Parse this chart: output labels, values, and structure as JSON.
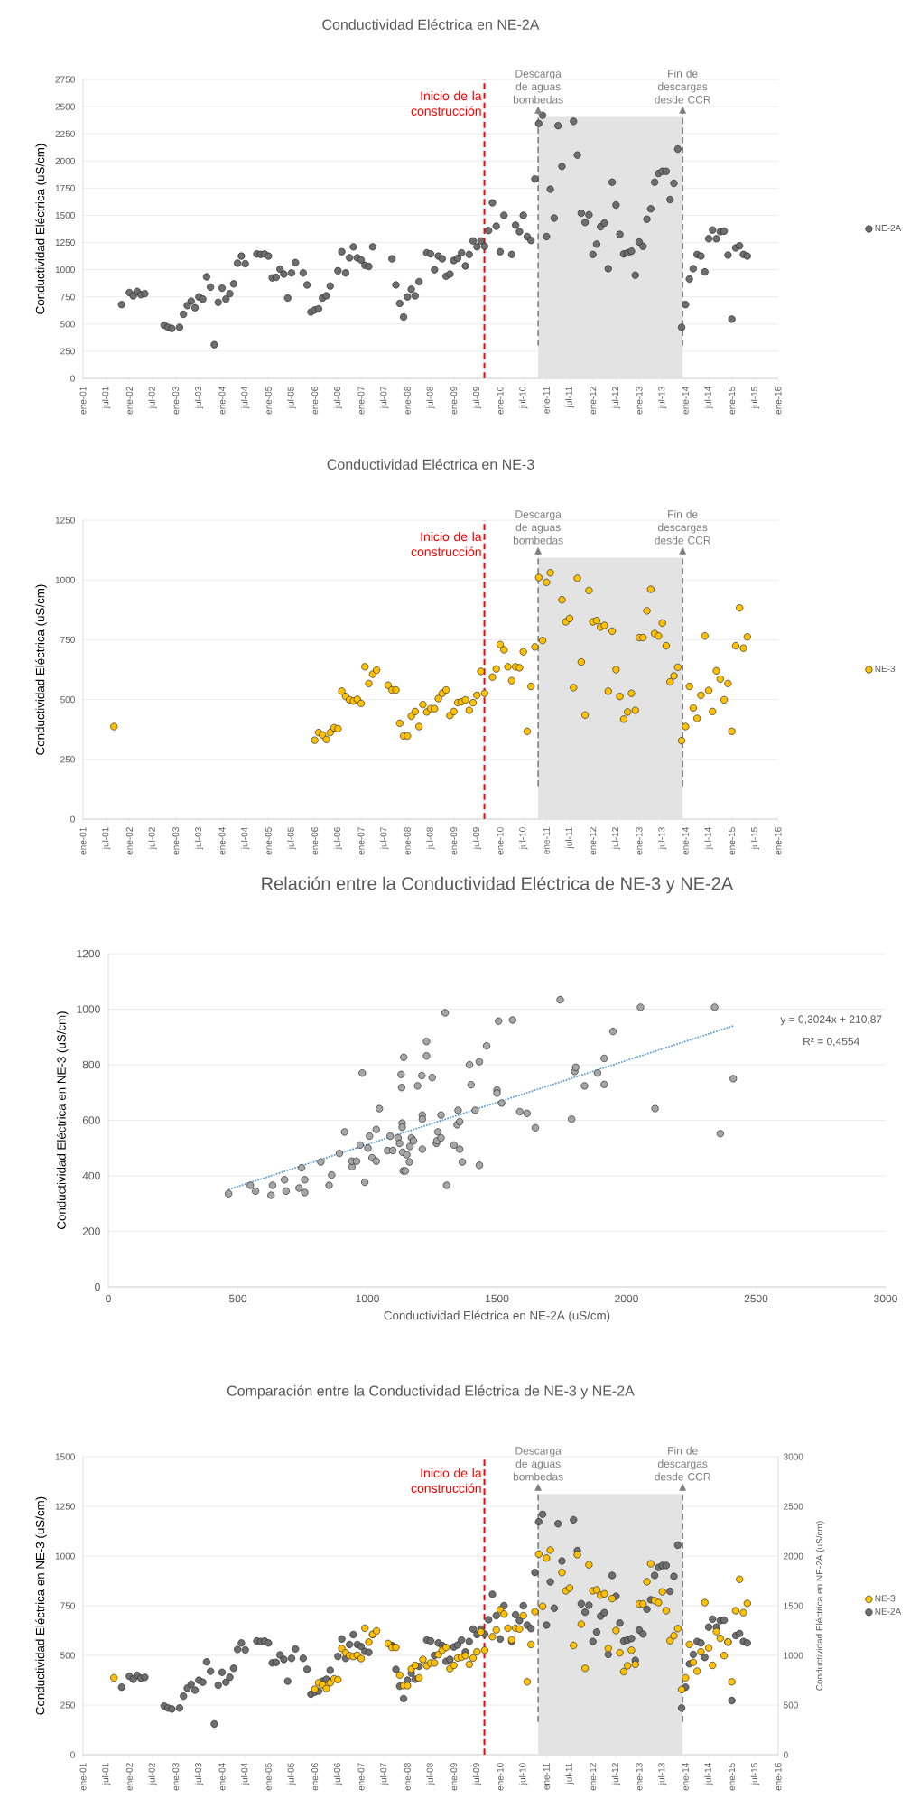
{
  "chart_data": [
    {
      "type": "scatter",
      "title": "Conductividad Eléctrica en NE-2A",
      "ylabel": "Conductividad Eléctrica (uS/cm)",
      "x": [
        "2001-11",
        "2002-01",
        "2002-02",
        "2002-03",
        "2002-04",
        "2002-05",
        "2002-10",
        "2002-11",
        "2002-12",
        "2003-02",
        "2003-03",
        "2003-04",
        "2003-05",
        "2003-06",
        "2003-07",
        "2003-08",
        "2003-09",
        "2003-10",
        "2003-11",
        "2003-12",
        "2004-01",
        "2004-02",
        "2004-03",
        "2004-04",
        "2004-05",
        "2004-06",
        "2004-07",
        "2004-10",
        "2004-11",
        "2004-12",
        "2005-01",
        "2005-02",
        "2005-03",
        "2005-04",
        "2005-05",
        "2005-06",
        "2005-07",
        "2005-08",
        "2005-10",
        "2005-11",
        "2005-12",
        "2006-01",
        "2006-02",
        "2006-03",
        "2006-04",
        "2006-05",
        "2006-07",
        "2006-08",
        "2006-09",
        "2006-10",
        "2006-11",
        "2006-12",
        "2007-01",
        "2007-02",
        "2007-03",
        "2007-04",
        "2007-09",
        "2007-10",
        "2007-11",
        "2007-12",
        "2008-01",
        "2008-02",
        "2008-03",
        "2008-04",
        "2008-06",
        "2008-07",
        "2008-08",
        "2008-09",
        "2008-10",
        "2008-11",
        "2008-12",
        "2009-01",
        "2009-02",
        "2009-03",
        "2009-04",
        "2009-05",
        "2009-06",
        "2009-07",
        "2009-08",
        "2009-09",
        "2009-10",
        "2009-11",
        "2009-12",
        "2010-01",
        "2010-02",
        "2010-04",
        "2010-05",
        "2010-06",
        "2010-07",
        "2010-08",
        "2010-09",
        "2010-10",
        "2010-11",
        "2010-12",
        "2011-01",
        "2011-02",
        "2011-03",
        "2011-04",
        "2011-05",
        "2011-08",
        "2011-09",
        "2011-10",
        "2011-11",
        "2011-12",
        "2012-01",
        "2012-02",
        "2012-03",
        "2012-04",
        "2012-05",
        "2012-06",
        "2012-07",
        "2012-08",
        "2012-09",
        "2012-10",
        "2012-11",
        "2012-12",
        "2013-01",
        "2013-02",
        "2013-03",
        "2013-04",
        "2013-05",
        "2013-06",
        "2013-07",
        "2013-08",
        "2013-09",
        "2013-10",
        "2013-11",
        "2013-12",
        "2014-01",
        "2014-02",
        "2014-03",
        "2014-04",
        "2014-05",
        "2014-06",
        "2014-07",
        "2014-08",
        "2014-09",
        "2014-10",
        "2014-11",
        "2014-12",
        "2015-01",
        "2015-02",
        "2015-03",
        "2015-04",
        "2015-05"
      ],
      "series": [
        {
          "name": "NE-2A",
          "color": "#6e6e6e",
          "values": [
            680,
            790,
            760,
            800,
            770,
            780,
            490,
            470,
            460,
            470,
            590,
            670,
            710,
            650,
            750,
            730,
            935,
            840,
            310,
            700,
            830,
            730,
            780,
            870,
            1060,
            1125,
            1055,
            1145,
            1140,
            1145,
            1125,
            925,
            930,
            1005,
            960,
            740,
            970,
            1065,
            970,
            860,
            610,
            630,
            640,
            740,
            760,
            850,
            990,
            1165,
            970,
            1110,
            1210,
            1110,
            1090,
            1040,
            1030,
            1210,
            1100,
            860,
            690,
            565,
            750,
            820,
            760,
            890,
            1155,
            1145,
            1000,
            1125,
            1100,
            940,
            960,
            1085,
            1105,
            1155,
            1035,
            1140,
            1265,
            1210,
            1265,
            1215,
            1360,
            1615,
            1400,
            1165,
            1500,
            1140,
            1410,
            1350,
            1500,
            1305,
            1270,
            1835,
            2345,
            2420,
            1305,
            1740,
            1475,
            2325,
            1950,
            2365,
            2055,
            1520,
            1435,
            1505,
            1140,
            1235,
            1395,
            1430,
            1010,
            1805,
            1595,
            1325,
            1145,
            1155,
            1170,
            950,
            1255,
            1215,
            1465,
            1560,
            1805,
            1885,
            1905,
            1905,
            1645,
            1795,
            2110,
            470,
            680,
            915,
            1010,
            1140,
            1125,
            980,
            1285,
            1365,
            1285,
            1350,
            1355,
            1135,
            545,
            1200,
            1220,
            1140,
            1125
          ]
        }
      ],
      "xlim": [
        "2001-01",
        "2016-01"
      ],
      "xticks": [
        {
          "value": "2001-01",
          "label": "ene-01"
        },
        {
          "value": "2001-07",
          "label": "jul-01"
        },
        {
          "value": "2002-01",
          "label": "ene-02"
        },
        {
          "value": "2002-07",
          "label": "jul-02"
        },
        {
          "value": "2003-01",
          "label": "ene-03"
        },
        {
          "value": "2003-07",
          "label": "jul-03"
        },
        {
          "value": "2004-01",
          "label": "ene-04"
        },
        {
          "value": "2004-07",
          "label": "jul-04"
        },
        {
          "value": "2005-01",
          "label": "ene-05"
        },
        {
          "value": "2005-07",
          "label": "jul-05"
        },
        {
          "value": "2006-01",
          "label": "ene-06"
        },
        {
          "value": "2006-07",
          "label": "jul-06"
        },
        {
          "value": "2007-01",
          "label": "ene-07"
        },
        {
          "value": "2007-07",
          "label": "jul-07"
        },
        {
          "value": "2008-01",
          "label": "ene-08"
        },
        {
          "value": "2008-07",
          "label": "jul-08"
        },
        {
          "value": "2009-01",
          "label": "ene-09"
        },
        {
          "value": "2009-07",
          "label": "jul-09"
        },
        {
          "value": "2010-01",
          "label": "ene-10"
        },
        {
          "value": "2010-07",
          "label": "jul-10"
        },
        {
          "value": "2011-01",
          "label": "ene-11"
        },
        {
          "value": "2011-07",
          "label": "jul-11"
        },
        {
          "value": "2012-01",
          "label": "ene-12"
        },
        {
          "value": "2012-07",
          "label": "jul-12"
        },
        {
          "value": "2013-01",
          "label": "ene-13"
        },
        {
          "value": "2013-07",
          "label": "jul-13"
        },
        {
          "value": "2014-01",
          "label": "ene-14"
        },
        {
          "value": "2014-07",
          "label": "jul-14"
        },
        {
          "value": "2015-01",
          "label": "ene-15"
        },
        {
          "value": "2015-07",
          "label": "jul-15"
        },
        {
          "value": "2016-01",
          "label": "ene-16"
        }
      ],
      "ylim": [
        0,
        2750
      ],
      "yticks": [
        0,
        250,
        500,
        750,
        1000,
        1250,
        1500,
        1750,
        2000,
        2250,
        2500,
        2750
      ],
      "grid": "y",
      "legend": "right",
      "marker": "circle",
      "ref_lines": [
        {
          "axis": "x",
          "value": "2009-08-29",
          "label": "Inicio de la construcción",
          "color": "#ff0000",
          "line_style": "dashed"
        },
        {
          "axis": "x",
          "value": "2010-10-27",
          "label": "Descarga de aguas bombedas",
          "color": "#7f7f7f",
          "line_style": "dashed"
        },
        {
          "axis": "x",
          "value": "2013-12-09",
          "label": "Fin de descargas desde CCR",
          "color": "#7f7f7f",
          "line_style": "dashed"
        }
      ],
      "bands": [
        {
          "axis": "x",
          "from": "2010-10-27",
          "to": "2013-12-09",
          "color": "#e3e3e3"
        }
      ]
    },
    {
      "type": "scatter",
      "title": "Conductividad Eléctrica en NE-3",
      "ylabel": "Conductividad Eléctrica (uS/cm)",
      "x": [
        "2001-09",
        "2006-01",
        "2006-02",
        "2006-03",
        "2006-04",
        "2006-05",
        "2006-06",
        "2006-07",
        "2006-08",
        "2006-09",
        "2006-10",
        "2006-11",
        "2006-12",
        "2007-01",
        "2007-02",
        "2007-03",
        "2007-04",
        "2007-05",
        "2007-08",
        "2007-09",
        "2007-10",
        "2007-11",
        "2007-12",
        "2008-01",
        "2008-02",
        "2008-03",
        "2008-04",
        "2008-05",
        "2008-06",
        "2008-07",
        "2008-08",
        "2008-09",
        "2008-10",
        "2008-11",
        "2008-12",
        "2009-01",
        "2009-02",
        "2009-03",
        "2009-04",
        "2009-05",
        "2009-06",
        "2009-07",
        "2009-08",
        "2009-09",
        "2009-11",
        "2009-12",
        "2010-01",
        "2010-02",
        "2010-03",
        "2010-04",
        "2010-05",
        "2010-06",
        "2010-07",
        "2010-08",
        "2010-09",
        "2010-10",
        "2010-11",
        "2010-12",
        "2011-01",
        "2011-02",
        "2011-05",
        "2011-06",
        "2011-07",
        "2011-08",
        "2011-09",
        "2011-10",
        "2011-11",
        "2011-12",
        "2012-01",
        "2012-02",
        "2012-03",
        "2012-04",
        "2012-05",
        "2012-06",
        "2012-07",
        "2012-08",
        "2012-09",
        "2012-10",
        "2012-11",
        "2012-12",
        "2013-01",
        "2013-02",
        "2013-03",
        "2013-04",
        "2013-05",
        "2013-06",
        "2013-07",
        "2013-08",
        "2013-09",
        "2013-10",
        "2013-11",
        "2013-12",
        "2014-01",
        "2014-02",
        "2014-03",
        "2014-04",
        "2014-05",
        "2014-06",
        "2014-07",
        "2014-08",
        "2014-09",
        "2014-10",
        "2014-11",
        "2014-12",
        "2015-01",
        "2015-02",
        "2015-03",
        "2015-04",
        "2015-05"
      ],
      "series": [
        {
          "name": "NE-3",
          "color": "#ffc000",
          "values": [
            387,
            330,
            362,
            352,
            333,
            362,
            382,
            378,
            535,
            513,
            499,
            494,
            501,
            484,
            637,
            567,
            606,
            623,
            560,
            540,
            540,
            401,
            348,
            348,
            431,
            450,
            387,
            479,
            448,
            462,
            462,
            504,
            526,
            540,
            433,
            450,
            487,
            491,
            499,
            455,
            487,
            518,
            618,
            526,
            594,
            628,
            730,
            708,
            637,
            579,
            637,
            633,
            700,
            367,
            555,
            720,
            1010,
            747,
            990,
            1030,
            917,
            825,
            839,
            550,
            1007,
            657,
            435,
            956,
            825,
            830,
            803,
            810,
            535,
            786,
            625,
            513,
            418,
            448,
            526,
            455,
            759,
            759,
            871,
            961,
            776,
            766,
            820,
            725,
            574,
            599,
            635,
            328,
            387,
            555,
            465,
            421,
            518,
            766,
            538,
            450,
            620,
            586,
            499,
            567,
            367,
            725,
            883,
            715,
            762
          ]
        }
      ],
      "xlim": [
        "2001-01",
        "2016-01"
      ],
      "xticks": [
        {
          "value": "2001-01",
          "label": "ene-01"
        },
        {
          "value": "2001-07",
          "label": "jul-01"
        },
        {
          "value": "2002-01",
          "label": "ene-02"
        },
        {
          "value": "2002-07",
          "label": "jul-02"
        },
        {
          "value": "2003-01",
          "label": "ene-03"
        },
        {
          "value": "2003-07",
          "label": "jul-03"
        },
        {
          "value": "2004-01",
          "label": "ene-04"
        },
        {
          "value": "2004-07",
          "label": "jul-04"
        },
        {
          "value": "2005-01",
          "label": "ene-05"
        },
        {
          "value": "2005-07",
          "label": "jul-05"
        },
        {
          "value": "2006-01",
          "label": "ene-06"
        },
        {
          "value": "2006-07",
          "label": "jul-06"
        },
        {
          "value": "2007-01",
          "label": "ene-07"
        },
        {
          "value": "2007-07",
          "label": "jul-07"
        },
        {
          "value": "2008-01",
          "label": "ene-08"
        },
        {
          "value": "2008-07",
          "label": "jul-08"
        },
        {
          "value": "2009-01",
          "label": "ene-09"
        },
        {
          "value": "2009-07",
          "label": "jul-09"
        },
        {
          "value": "2010-01",
          "label": "ene-10"
        },
        {
          "value": "2010-07",
          "label": "jul-10"
        },
        {
          "value": "2011-01",
          "label": "ene-11"
        },
        {
          "value": "2011-07",
          "label": "jul-11"
        },
        {
          "value": "2012-01",
          "label": "ene-12"
        },
        {
          "value": "2012-07",
          "label": "jul-12"
        },
        {
          "value": "2013-01",
          "label": "ene-13"
        },
        {
          "value": "2013-07",
          "label": "jul-13"
        },
        {
          "value": "2014-01",
          "label": "ene-14"
        },
        {
          "value": "2014-07",
          "label": "jul-14"
        },
        {
          "value": "2015-01",
          "label": "ene-15"
        },
        {
          "value": "2015-07",
          "label": "jul-15"
        },
        {
          "value": "2016-01",
          "label": "ene-16"
        }
      ],
      "ylim": [
        0,
        1250
      ],
      "yticks": [
        0,
        250,
        500,
        750,
        1000,
        1250
      ],
      "grid": "y",
      "legend": "right",
      "marker": "circle",
      "ref_lines": [
        {
          "axis": "x",
          "value": "2009-08-29",
          "label": "Inicio de la construcción",
          "color": "#ff0000",
          "line_style": "dashed"
        },
        {
          "axis": "x",
          "value": "2010-10-27",
          "label": "Descarga de aguas bombedas",
          "color": "#7f7f7f",
          "line_style": "dashed"
        },
        {
          "axis": "x",
          "value": "2013-12-09",
          "label": "Fin de descargas desde CCR",
          "color": "#7f7f7f",
          "line_style": "dashed"
        }
      ],
      "bands": [
        {
          "axis": "x",
          "from": "2010-10-27",
          "to": "2013-12-09",
          "color": "#e3e3e3"
        }
      ]
    },
    {
      "type": "scatter",
      "title": "Relación entre la Conductividad Eléctrica de NE-3 y NE-2A",
      "xlabel": "Conductividad Eléctrica en NE-2A (uS/cm)",
      "ylabel": "Conductividad Eléctrica en NE-3 (uS/cm)",
      "series": [
        {
          "color": "#a6a6a6",
          "x": [
            464,
            548,
            568,
            628,
            634,
            680,
            686,
            736,
            746,
            758,
            758,
            820,
            852,
            862,
            892,
            912,
            940,
            940,
            958,
            972,
            980,
            990,
            1002,
            1008,
            1018,
            1034,
            1034,
            1046,
            1078,
            1088,
            1098,
            1118,
            1124,
            1130,
            1132,
            1134,
            1134,
            1136,
            1140,
            1138,
            1146,
            1152,
            1162,
            1164,
            1170,
            1178,
            1194,
            1210,
            1212,
            1212,
            1212,
            1228,
            1228,
            1250,
            1266,
            1268,
            1272,
            1284,
            1284,
            1300,
            1306,
            1334,
            1346,
            1350,
            1356,
            1356,
            1366,
            1394,
            1400,
            1416,
            1432,
            1432,
            1460,
            1500,
            1500,
            1506,
            1518,
            1560,
            1588,
            1616,
            1648,
            1744,
            1788,
            1800,
            1804,
            1838,
            1888,
            1914,
            1914,
            1948,
            2054,
            2110,
            2340,
            2362,
            2412
          ],
          "values": [
            336,
            366,
            345,
            330,
            366,
            386,
            345,
            356,
            429,
            386,
            340,
            450,
            366,
            403,
            481,
            558,
            433,
            453,
            453,
            511,
            770,
            377,
            500,
            543,
            465,
            567,
            453,
            642,
            491,
            543,
            491,
            537,
            517,
            765,
            718,
            590,
            575,
            485,
            827,
            418,
            418,
            476,
            450,
            506,
            537,
            526,
            724,
            761,
            619,
            604,
            496,
            884,
            832,
            754,
            517,
            526,
            558,
            537,
            619,
            987,
            366,
            511,
            584,
            636,
            496,
            595,
            450,
            800,
            728,
            636,
            438,
            811,
            868,
            709,
            698,
            957,
            662,
            961,
            631,
            625,
            573,
            1034,
            604,
            776,
            791,
            724,
            770,
            823,
            729,
            920,
            1007,
            642,
            1007,
            552,
            750
          ]
        },
        {
          "type": "line",
          "marker": "none",
          "line_style": "dotted",
          "color": "#5b9bd5",
          "x": [
            464,
            2412
          ],
          "values": [
            351,
            940
          ]
        }
      ],
      "xlim": [
        0,
        3000
      ],
      "xticks": [
        0,
        500,
        1000,
        1500,
        2000,
        2500,
        3000
      ],
      "ylim": [
        0,
        1200
      ],
      "yticks": [
        0,
        200,
        400,
        600,
        800,
        1000,
        1200
      ],
      "grid": "y",
      "marker": "circle",
      "annotations": [
        "y = 0,3024x + 210,87",
        "R² = 0,4554"
      ]
    },
    {
      "type": "scatter",
      "title": "Comparación entre la Conductividad Eléctrica de NE-3 y NE-2A",
      "ylabel": "Conductividad Eléctrica en NE-3 (uS/cm)",
      "y2label": "Conductividad Eléctrica en NE-2A (uS/cm)",
      "series": [
        {
          "name": "NE-3",
          "color": "#ffc000",
          "x": [
            "2001-09",
            "2006-01",
            "2006-02",
            "2006-03",
            "2006-04",
            "2006-05",
            "2006-06",
            "2006-07",
            "2006-08",
            "2006-09",
            "2006-10",
            "2006-11",
            "2006-12",
            "2007-01",
            "2007-02",
            "2007-03",
            "2007-04",
            "2007-05",
            "2007-08",
            "2007-09",
            "2007-10",
            "2007-11",
            "2007-12",
            "2008-01",
            "2008-02",
            "2008-03",
            "2008-04",
            "2008-05",
            "2008-06",
            "2008-07",
            "2008-08",
            "2008-09",
            "2008-10",
            "2008-11",
            "2008-12",
            "2009-01",
            "2009-02",
            "2009-03",
            "2009-04",
            "2009-05",
            "2009-06",
            "2009-07",
            "2009-08",
            "2009-09",
            "2009-11",
            "2009-12",
            "2010-01",
            "2010-02",
            "2010-03",
            "2010-04",
            "2010-05",
            "2010-06",
            "2010-07",
            "2010-08",
            "2010-09",
            "2010-10",
            "2010-11",
            "2010-12",
            "2011-01",
            "2011-02",
            "2011-05",
            "2011-06",
            "2011-07",
            "2011-08",
            "2011-09",
            "2011-10",
            "2011-11",
            "2011-12",
            "2012-01",
            "2012-02",
            "2012-03",
            "2012-04",
            "2012-05",
            "2012-06",
            "2012-07",
            "2012-08",
            "2012-09",
            "2012-10",
            "2012-11",
            "2012-12",
            "2013-01",
            "2013-02",
            "2013-03",
            "2013-04",
            "2013-05",
            "2013-06",
            "2013-07",
            "2013-08",
            "2013-09",
            "2013-10",
            "2013-11",
            "2013-12",
            "2014-01",
            "2014-02",
            "2014-03",
            "2014-04",
            "2014-05",
            "2014-06",
            "2014-07",
            "2014-08",
            "2014-09",
            "2014-10",
            "2014-11",
            "2014-12",
            "2015-01",
            "2015-02",
            "2015-03",
            "2015-04",
            "2015-05"
          ],
          "values": [
            387,
            330,
            362,
            352,
            333,
            362,
            382,
            378,
            535,
            513,
            499,
            494,
            501,
            484,
            637,
            567,
            606,
            623,
            560,
            540,
            540,
            401,
            348,
            348,
            431,
            450,
            387,
            479,
            448,
            462,
            462,
            504,
            526,
            540,
            433,
            450,
            487,
            491,
            499,
            455,
            487,
            518,
            618,
            526,
            594,
            628,
            730,
            708,
            637,
            579,
            637,
            633,
            700,
            367,
            555,
            720,
            1010,
            747,
            990,
            1030,
            917,
            825,
            839,
            550,
            1007,
            657,
            435,
            956,
            825,
            830,
            803,
            810,
            535,
            786,
            625,
            513,
            418,
            448,
            526,
            455,
            759,
            759,
            871,
            961,
            776,
            766,
            820,
            725,
            574,
            599,
            635,
            328,
            387,
            555,
            465,
            421,
            518,
            766,
            538,
            450,
            620,
            586,
            499,
            567,
            367,
            725,
            883,
            715,
            762
          ]
        },
        {
          "name": "NE-2A",
          "color": "#6e6e6e",
          "axis": "y2",
          "x": [
            "2001-11",
            "2002-01",
            "2002-02",
            "2002-03",
            "2002-04",
            "2002-05",
            "2002-10",
            "2002-11",
            "2002-12",
            "2003-02",
            "2003-03",
            "2003-04",
            "2003-05",
            "2003-06",
            "2003-07",
            "2003-08",
            "2003-09",
            "2003-10",
            "2003-11",
            "2003-12",
            "2004-01",
            "2004-02",
            "2004-03",
            "2004-04",
            "2004-05",
            "2004-06",
            "2004-07",
            "2004-10",
            "2004-11",
            "2004-12",
            "2005-01",
            "2005-02",
            "2005-03",
            "2005-04",
            "2005-05",
            "2005-06",
            "2005-07",
            "2005-08",
            "2005-10",
            "2005-11",
            "2005-12",
            "2006-01",
            "2006-02",
            "2006-03",
            "2006-04",
            "2006-05",
            "2006-07",
            "2006-08",
            "2006-09",
            "2006-10",
            "2006-11",
            "2006-12",
            "2007-01",
            "2007-02",
            "2007-03",
            "2007-04",
            "2007-09",
            "2007-10",
            "2007-11",
            "2007-12",
            "2008-01",
            "2008-02",
            "2008-03",
            "2008-04",
            "2008-06",
            "2008-07",
            "2008-08",
            "2008-09",
            "2008-10",
            "2008-11",
            "2008-12",
            "2009-01",
            "2009-02",
            "2009-03",
            "2009-04",
            "2009-05",
            "2009-06",
            "2009-07",
            "2009-08",
            "2009-09",
            "2009-10",
            "2009-11",
            "2009-12",
            "2010-01",
            "2010-02",
            "2010-04",
            "2010-05",
            "2010-06",
            "2010-07",
            "2010-08",
            "2010-09",
            "2010-10",
            "2010-11",
            "2010-12",
            "2011-01",
            "2011-02",
            "2011-03",
            "2011-04",
            "2011-05",
            "2011-08",
            "2011-09",
            "2011-10",
            "2011-11",
            "2011-12",
            "2012-01",
            "2012-02",
            "2012-03",
            "2012-04",
            "2012-05",
            "2012-06",
            "2012-07",
            "2012-08",
            "2012-09",
            "2012-10",
            "2012-11",
            "2012-12",
            "2013-01",
            "2013-02",
            "2013-03",
            "2013-04",
            "2013-05",
            "2013-06",
            "2013-07",
            "2013-08",
            "2013-09",
            "2013-10",
            "2013-11",
            "2013-12",
            "2014-01",
            "2014-02",
            "2014-03",
            "2014-04",
            "2014-05",
            "2014-06",
            "2014-07",
            "2014-08",
            "2014-09",
            "2014-10",
            "2014-11",
            "2014-12",
            "2015-01",
            "2015-02",
            "2015-03",
            "2015-04",
            "2015-05"
          ],
          "values": [
            680,
            790,
            760,
            800,
            770,
            780,
            490,
            470,
            460,
            470,
            590,
            670,
            710,
            650,
            750,
            730,
            935,
            840,
            310,
            700,
            830,
            730,
            780,
            870,
            1060,
            1125,
            1055,
            1145,
            1140,
            1145,
            1125,
            925,
            930,
            1005,
            960,
            740,
            970,
            1065,
            970,
            860,
            610,
            630,
            640,
            740,
            760,
            850,
            990,
            1165,
            970,
            1110,
            1210,
            1110,
            1090,
            1040,
            1030,
            1210,
            1100,
            860,
            690,
            565,
            750,
            820,
            760,
            890,
            1155,
            1145,
            1000,
            1125,
            1100,
            940,
            960,
            1085,
            1105,
            1155,
            1035,
            1140,
            1265,
            1210,
            1265,
            1215,
            1360,
            1615,
            1400,
            1165,
            1500,
            1140,
            1410,
            1350,
            1500,
            1305,
            1270,
            1835,
            2345,
            2420,
            1305,
            1740,
            1475,
            2325,
            1950,
            2365,
            2055,
            1520,
            1435,
            1505,
            1140,
            1235,
            1395,
            1430,
            1010,
            1805,
            1595,
            1325,
            1145,
            1155,
            1170,
            950,
            1255,
            1215,
            1465,
            1560,
            1805,
            1885,
            1905,
            1905,
            1645,
            1795,
            2110,
            470,
            680,
            915,
            1010,
            1140,
            1125,
            980,
            1285,
            1365,
            1285,
            1350,
            1355,
            1135,
            545,
            1200,
            1220,
            1140,
            1125
          ]
        }
      ],
      "xlim": [
        "2001-01",
        "2016-01"
      ],
      "xticks": [
        {
          "value": "2001-01",
          "label": "ene-01"
        },
        {
          "value": "2001-07",
          "label": "jul-01"
        },
        {
          "value": "2002-01",
          "label": "ene-02"
        },
        {
          "value": "2002-07",
          "label": "jul-02"
        },
        {
          "value": "2003-01",
          "label": "ene-03"
        },
        {
          "value": "2003-07",
          "label": "jul-03"
        },
        {
          "value": "2004-01",
          "label": "ene-04"
        },
        {
          "value": "2004-07",
          "label": "jul-04"
        },
        {
          "value": "2005-01",
          "label": "ene-05"
        },
        {
          "value": "2005-07",
          "label": "jul-05"
        },
        {
          "value": "2006-01",
          "label": "ene-06"
        },
        {
          "value": "2006-07",
          "label": "jul-06"
        },
        {
          "value": "2007-01",
          "label": "ene-07"
        },
        {
          "value": "2007-07",
          "label": "jul-07"
        },
        {
          "value": "2008-01",
          "label": "ene-08"
        },
        {
          "value": "2008-07",
          "label": "jul-08"
        },
        {
          "value": "2009-01",
          "label": "ene-09"
        },
        {
          "value": "2009-07",
          "label": "jul-09"
        },
        {
          "value": "2010-01",
          "label": "ene-10"
        },
        {
          "value": "2010-07",
          "label": "jul-10"
        },
        {
          "value": "2011-01",
          "label": "ene-11"
        },
        {
          "value": "2011-07",
          "label": "jul-11"
        },
        {
          "value": "2012-01",
          "label": "ene-12"
        },
        {
          "value": "2012-07",
          "label": "jul-12"
        },
        {
          "value": "2013-01",
          "label": "ene-13"
        },
        {
          "value": "2013-07",
          "label": "jul-13"
        },
        {
          "value": "2014-01",
          "label": "ene-14"
        },
        {
          "value": "2014-07",
          "label": "jul-14"
        },
        {
          "value": "2015-01",
          "label": "ene-15"
        },
        {
          "value": "2015-07",
          "label": "jul-15"
        },
        {
          "value": "2016-01",
          "label": "ene-16"
        }
      ],
      "ylim": [
        0,
        1500
      ],
      "yticks": [
        0,
        250,
        500,
        750,
        1000,
        1250,
        1500
      ],
      "y2lim": [
        0,
        3000
      ],
      "y2ticks": [
        0,
        500,
        1000,
        1500,
        2000,
        2500,
        3000
      ],
      "grid": "y",
      "legend": "right",
      "marker": "circle",
      "ref_lines": [
        {
          "axis": "x",
          "value": "2009-08-29",
          "label": "Inicio de la construcción",
          "color": "#ff0000",
          "line_style": "dashed"
        },
        {
          "axis": "x",
          "value": "2010-10-27",
          "label": "Descarga de aguas bombedas",
          "color": "#7f7f7f",
          "line_style": "dashed"
        },
        {
          "axis": "x",
          "value": "2013-12-09",
          "label": "Fin de descargas desde CCR",
          "color": "#7f7f7f",
          "line_style": "dashed"
        }
      ],
      "bands": [
        {
          "axis": "x",
          "from": "2010-10-27",
          "to": "2013-12-09",
          "color": "#e3e3e3"
        }
      ]
    }
  ]
}
